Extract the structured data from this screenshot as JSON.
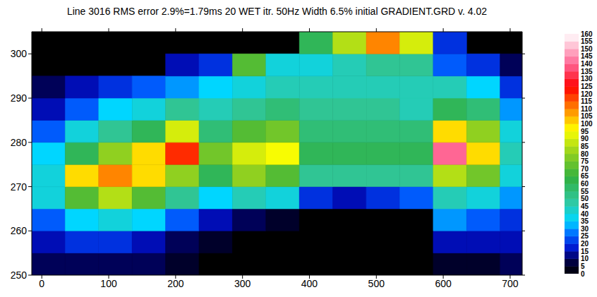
{
  "chart_data": {
    "type": "heatmap",
    "title": "Line 3016 RMS error 2.9%=1.79ms 20 WET itr. 50Hz Width 6.5% initial GRADIENT.GRD v. 4.02",
    "xlim": [
      -15,
      718
    ],
    "xticks": [
      0,
      100,
      200,
      300,
      400,
      500,
      600,
      700
    ],
    "ylim": [
      250,
      305
    ],
    "yticks": [
      250,
      260,
      270,
      280,
      290,
      300
    ],
    "grid": false,
    "x_bins": [
      -15,
      35,
      85,
      135,
      185,
      235,
      285,
      335,
      385,
      435,
      485,
      535,
      585,
      635,
      685,
      735
    ],
    "y_bins": [
      250,
      255,
      260,
      265,
      270,
      275,
      280,
      285,
      290,
      295,
      300,
      305
    ],
    "cells": [
      [
        10,
        10,
        10,
        10,
        5,
        0,
        0,
        0,
        0,
        0,
        0,
        0,
        5,
        5,
        10
      ],
      [
        15,
        20,
        20,
        15,
        10,
        5,
        0,
        0,
        0,
        0,
        0,
        0,
        15,
        15,
        15
      ],
      [
        25,
        35,
        40,
        35,
        25,
        15,
        10,
        5,
        0,
        0,
        0,
        0,
        30,
        25,
        20
      ],
      [
        40,
        70,
        85,
        70,
        50,
        35,
        45,
        40,
        20,
        15,
        20,
        25,
        45,
        40,
        30
      ],
      [
        40,
        100,
        110,
        100,
        80,
        60,
        80,
        70,
        50,
        50,
        50,
        50,
        85,
        75,
        40
      ],
      [
        35,
        60,
        80,
        100,
        120,
        75,
        90,
        95,
        60,
        60,
        60,
        60,
        140,
        100,
        45
      ],
      [
        25,
        40,
        50,
        60,
        90,
        55,
        70,
        75,
        55,
        55,
        55,
        55,
        100,
        80,
        40
      ],
      [
        15,
        25,
        35,
        40,
        50,
        45,
        50,
        55,
        50,
        50,
        50,
        45,
        60,
        55,
        30
      ],
      [
        10,
        15,
        20,
        25,
        30,
        35,
        40,
        45,
        45,
        45,
        45,
        45,
        45,
        35,
        20
      ],
      [
        null,
        null,
        null,
        null,
        15,
        20,
        70,
        40,
        40,
        45,
        50,
        50,
        25,
        20,
        10
      ],
      [
        null,
        null,
        null,
        null,
        null,
        null,
        null,
        null,
        60,
        85,
        110,
        90,
        20,
        null,
        null
      ]
    ],
    "colorbar": {
      "range": [
        0,
        160
      ],
      "ticks": [
        0,
        5,
        10,
        15,
        20,
        25,
        30,
        35,
        40,
        45,
        50,
        55,
        60,
        65,
        70,
        75,
        80,
        85,
        90,
        95,
        100,
        105,
        110,
        115,
        120,
        125,
        130,
        135,
        140,
        145,
        150,
        155,
        160
      ]
    }
  }
}
